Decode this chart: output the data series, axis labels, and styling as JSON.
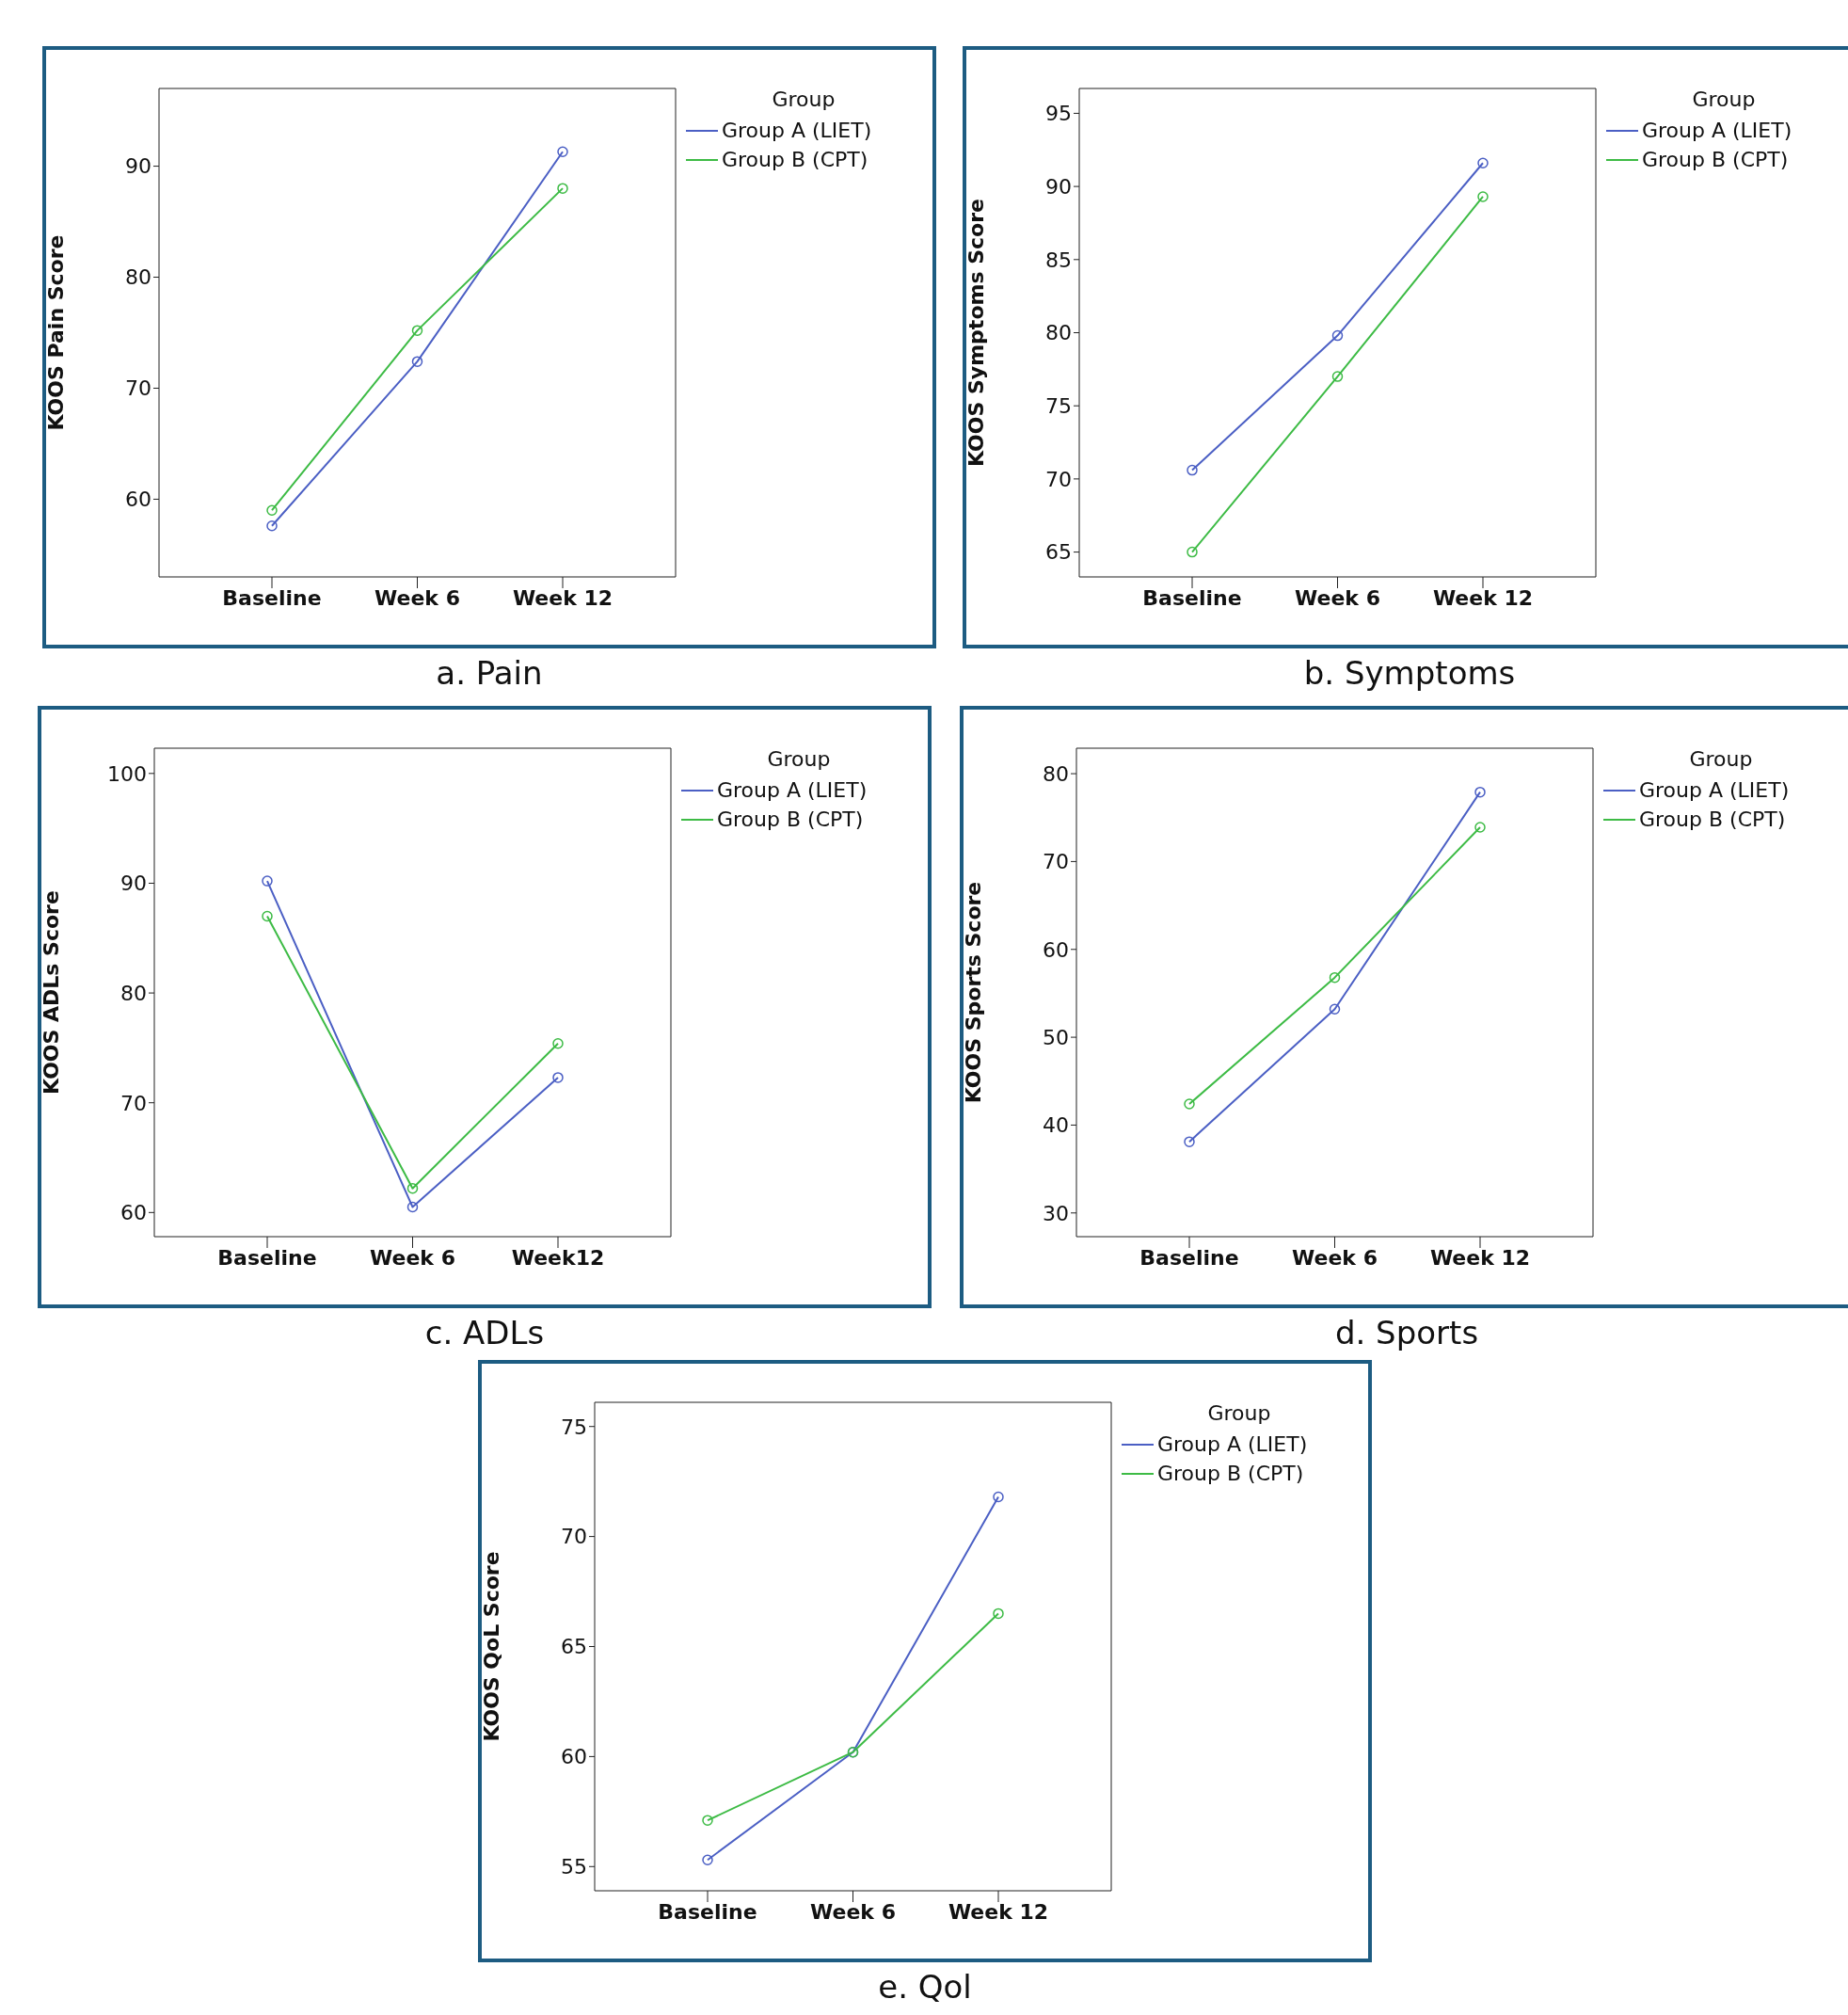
{
  "chart_data": [
    {
      "type": "line",
      "title": "a. Pain",
      "ylabel": "KOOS Pain Score",
      "legend_title": "Group",
      "categories": [
        "Baseline",
        "Week 6",
        "Week 12"
      ],
      "ylim": [
        53,
        97
      ],
      "yticks": [
        60,
        70,
        80,
        90
      ],
      "marker": "circle",
      "legend": "right",
      "series": [
        {
          "name": "Group A (LIET)",
          "color": "#4b5fc4",
          "values": [
            57.6,
            72.4,
            91.3
          ]
        },
        {
          "name": "Group B (CPT)",
          "color": "#3dbb45",
          "values": [
            59.0,
            75.2,
            88.0
          ]
        }
      ]
    },
    {
      "type": "line",
      "title": "b. Symptoms",
      "ylabel": "KOOS Symptoms Score",
      "legend_title": "Group",
      "categories": [
        "Baseline",
        "Week 6",
        "Week 12"
      ],
      "ylim": [
        63.3,
        96.7
      ],
      "yticks": [
        65,
        70,
        75,
        80,
        85,
        90,
        95
      ],
      "marker": "circle",
      "legend": "right",
      "series": [
        {
          "name": "Group A (LIET)",
          "color": "#4b5fc4",
          "values": [
            70.6,
            79.8,
            91.6
          ]
        },
        {
          "name": "Group B (CPT)",
          "color": "#3dbb45",
          "values": [
            65.0,
            77.0,
            89.3
          ]
        }
      ]
    },
    {
      "type": "line",
      "title": "c. ADLs",
      "ylabel": "KOOS ADLs Score",
      "legend_title": "Group",
      "categories": [
        "Baseline",
        "Week 6",
        "Week12"
      ],
      "ylim": [
        57.8,
        102.3
      ],
      "yticks": [
        60,
        70,
        80,
        90,
        100
      ],
      "marker": "circle",
      "legend": "right",
      "series": [
        {
          "name": "Group A (LIET)",
          "color": "#4b5fc4",
          "values": [
            90.2,
            60.5,
            72.3
          ]
        },
        {
          "name": "Group B (CPT)",
          "color": "#3dbb45",
          "values": [
            87.0,
            62.2,
            75.4
          ]
        }
      ]
    },
    {
      "type": "line",
      "title": "d. Sports",
      "ylabel": "KOOS Sports Score",
      "legend_title": "Group",
      "categories": [
        "Baseline",
        "Week 6",
        "Week 12"
      ],
      "ylim": [
        27.3,
        82.9
      ],
      "yticks": [
        30,
        40,
        50,
        60,
        70,
        80
      ],
      "marker": "circle",
      "legend": "right",
      "series": [
        {
          "name": "Group A (LIET)",
          "color": "#4b5fc4",
          "values": [
            38.1,
            53.2,
            77.9
          ]
        },
        {
          "name": "Group B (CPT)",
          "color": "#3dbb45",
          "values": [
            42.4,
            56.8,
            73.9
          ]
        }
      ]
    },
    {
      "type": "line",
      "title": "e. Qol",
      "ylabel": "KOOS QoL Score",
      "legend_title": "Group",
      "categories": [
        "Baseline",
        "Week 6",
        "Week 12"
      ],
      "ylim": [
        53.9,
        76.1
      ],
      "yticks": [
        55,
        60,
        65,
        70,
        75
      ],
      "marker": "circle",
      "legend": "right",
      "series": [
        {
          "name": "Group A (LIET)",
          "color": "#4b5fc4",
          "values": [
            55.3,
            60.2,
            71.8
          ]
        },
        {
          "name": "Group B (CPT)",
          "color": "#3dbb45",
          "values": [
            57.1,
            60.2,
            66.5
          ]
        }
      ]
    }
  ]
}
